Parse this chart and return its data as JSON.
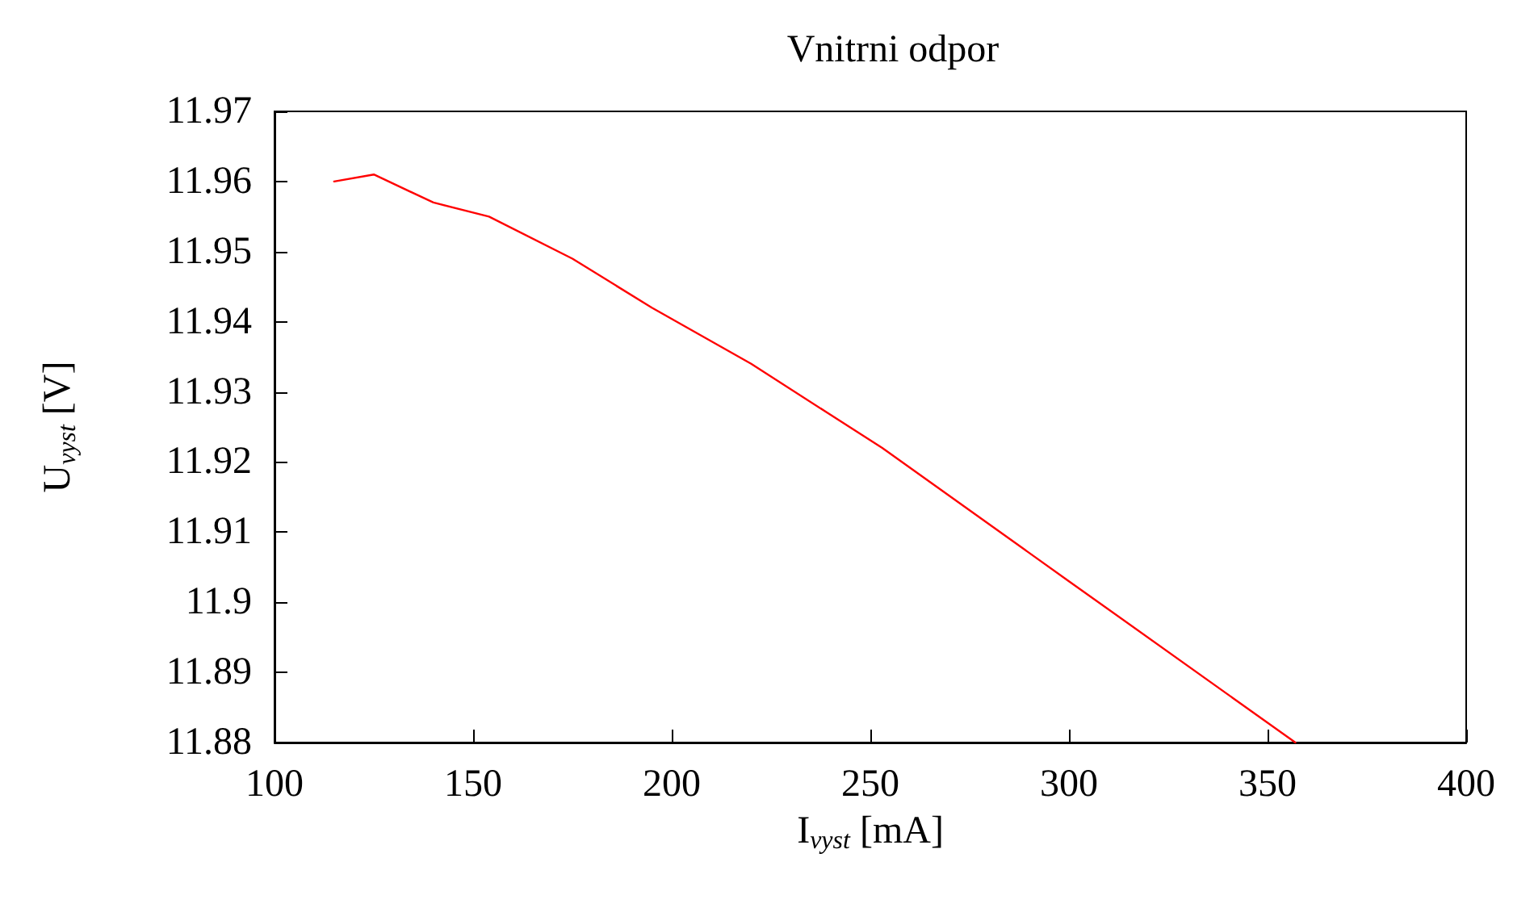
{
  "chart_data": {
    "type": "line",
    "title": "Vnitrni odpor",
    "xlabel": "I$_{vyst}$ [mA]",
    "ylabel": "U$_{vyst}$ [V]",
    "x": [
      115,
      125,
      140,
      154,
      175,
      195,
      220,
      253,
      300,
      357
    ],
    "series": [
      {
        "color": "#ff0000",
        "values": [
          11.96,
          11.961,
          11.957,
          11.955,
          11.949,
          11.942,
          11.934,
          11.922,
          11.903,
          11.88
        ]
      }
    ],
    "xlim": [
      100,
      400
    ],
    "xticks": [
      100,
      150,
      200,
      250,
      300,
      350,
      400
    ],
    "ylim": [
      11.88,
      11.97
    ],
    "yticks": [
      11.88,
      11.89,
      11.9,
      11.91,
      11.92,
      11.93,
      11.94,
      11.95,
      11.96,
      11.97
    ],
    "grid": false,
    "marker": "none",
    "line_style": "solid"
  }
}
